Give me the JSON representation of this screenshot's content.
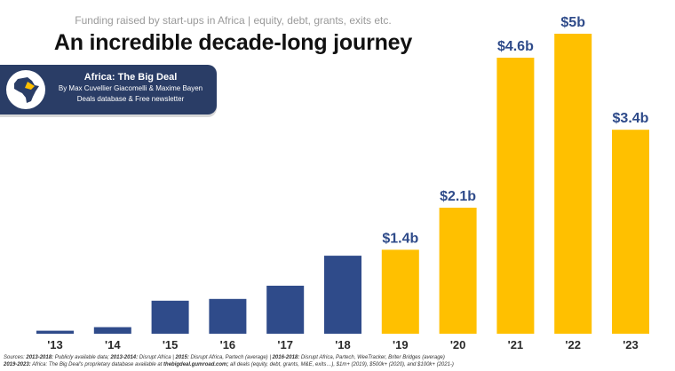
{
  "header": {
    "subtitle": "Funding raised by start-ups in Africa | equity, debt, grants, exits etc.",
    "title": "An incredible decade-long journey"
  },
  "brand": {
    "name": "Africa: The Big Deal",
    "authors": "By Max Cuvellier Giacomelli & Maxime Bayen",
    "tagline": "Deals database & Free newsletter"
  },
  "chart_data": {
    "type": "bar",
    "title": "An incredible decade-long journey",
    "subtitle": "Funding raised by start-ups in Africa | equity, debt, grants, exits etc.",
    "categories": [
      "'13",
      "'14",
      "'15",
      "'16",
      "'17",
      "'18",
      "'19",
      "'20",
      "'21",
      "'22",
      "'23"
    ],
    "values": [
      0.05,
      0.11,
      0.55,
      0.58,
      0.8,
      1.3,
      1.4,
      2.1,
      4.6,
      5.0,
      3.4
    ],
    "data_labels": [
      "",
      "",
      "",
      "",
      "",
      "",
      "$1.4b",
      "$2.1b",
      "$4.6b",
      "$5b",
      "$3.4b"
    ],
    "unit": "billion USD",
    "ylim": [
      0,
      5
    ],
    "grid": false,
    "colors": [
      "#2f4b8a",
      "#2f4b8a",
      "#2f4b8a",
      "#2f4b8a",
      "#2f4b8a",
      "#2f4b8a",
      "#ffc000",
      "#ffc000",
      "#ffc000",
      "#ffc000",
      "#ffc000"
    ],
    "label_color": "#2f4b8a",
    "xlabel": "",
    "ylabel": ""
  },
  "footer": {
    "line1_prefix": "Sources: ",
    "line1_b1": "2013-2018:",
    "line1_t1": " Publicly available data; ",
    "line1_b2": "2013-2014:",
    "line1_t2": " Disrupt Africa | ",
    "line1_b3": "2015:",
    "line1_t3": " Disrupt Africa, Partech (average) | ",
    "line1_b4": "2016-2018:",
    "line1_t4": " Disrupt Africa, Partech, WeeTracker, Briter Bridges (average)",
    "line2_b1": "2019-2023:",
    "line2_t1": " Africa: The Big Deal's proprietary database available at ",
    "line2_b2": "thebigdeal.gumroad.com;",
    "line2_t2": " all deals (equity, debt, grants, M&E, exits…), $1m+ (2019), $500k+ (2020), and $100k+ (2021-)"
  }
}
